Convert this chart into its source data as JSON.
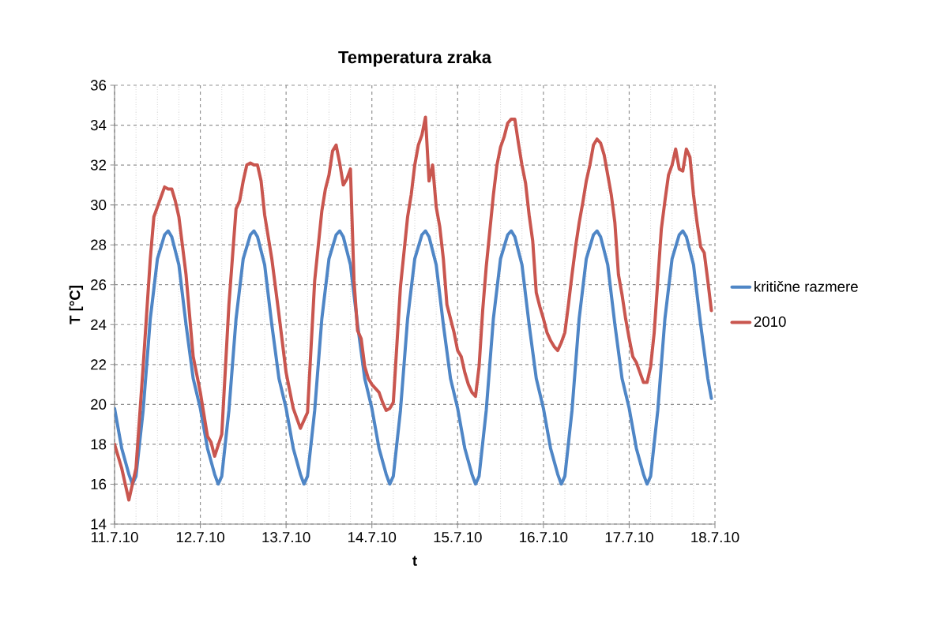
{
  "chart_data": {
    "type": "line",
    "title": "Temperatura zraka",
    "xlabel": "t",
    "ylabel": "T [°C]",
    "xlim": [
      "2010-07-11T00:00",
      "2010-07-18T00:00"
    ],
    "xticks": [
      {
        "value": "2010-07-11T00:00",
        "label": "11.7.10"
      },
      {
        "value": "2010-07-12T00:00",
        "label": "12.7.10"
      },
      {
        "value": "2010-07-13T00:00",
        "label": "13.7.10"
      },
      {
        "value": "2010-07-14T00:00",
        "label": "14.7.10"
      },
      {
        "value": "2010-07-15T00:00",
        "label": "15.7.10"
      },
      {
        "value": "2010-07-16T00:00",
        "label": "16.7.10"
      },
      {
        "value": "2010-07-17T00:00",
        "label": "17.7.10"
      },
      {
        "value": "2010-07-18T00:00",
        "label": "18.7.10"
      }
    ],
    "ylim": [
      14,
      36
    ],
    "yticks": [
      14,
      16,
      18,
      20,
      22,
      24,
      26,
      28,
      30,
      32,
      34,
      36
    ],
    "grid": true,
    "legend": "right",
    "series": [
      {
        "name": "kritične razmere",
        "color": "#4f86c6",
        "x": [
          "2010-07-11T00:00",
          "2010-07-11T02:00",
          "2010-07-11T04:00",
          "2010-07-11T05:00",
          "2010-07-11T06:00",
          "2010-07-11T08:00",
          "2010-07-11T10:00",
          "2010-07-11T12:00",
          "2010-07-11T14:00",
          "2010-07-11T15:00",
          "2010-07-11T16:00",
          "2010-07-11T18:00",
          "2010-07-11T20:00",
          "2010-07-11T22:00",
          "2010-07-12T00:00",
          "2010-07-12T02:00",
          "2010-07-12T04:00",
          "2010-07-12T05:00",
          "2010-07-12T06:00",
          "2010-07-12T08:00",
          "2010-07-12T10:00",
          "2010-07-12T12:00",
          "2010-07-12T14:00",
          "2010-07-12T15:00",
          "2010-07-12T16:00",
          "2010-07-12T18:00",
          "2010-07-12T20:00",
          "2010-07-12T22:00",
          "2010-07-13T00:00",
          "2010-07-13T02:00",
          "2010-07-13T04:00",
          "2010-07-13T05:00",
          "2010-07-13T06:00",
          "2010-07-13T08:00",
          "2010-07-13T10:00",
          "2010-07-13T12:00",
          "2010-07-13T14:00",
          "2010-07-13T15:00",
          "2010-07-13T16:00",
          "2010-07-13T18:00",
          "2010-07-13T20:00",
          "2010-07-13T22:00",
          "2010-07-14T00:00",
          "2010-07-14T02:00",
          "2010-07-14T04:00",
          "2010-07-14T05:00",
          "2010-07-14T06:00",
          "2010-07-14T08:00",
          "2010-07-14T10:00",
          "2010-07-14T12:00",
          "2010-07-14T14:00",
          "2010-07-14T15:00",
          "2010-07-14T16:00",
          "2010-07-14T18:00",
          "2010-07-14T20:00",
          "2010-07-14T22:00",
          "2010-07-15T00:00",
          "2010-07-15T02:00",
          "2010-07-15T04:00",
          "2010-07-15T05:00",
          "2010-07-15T06:00",
          "2010-07-15T08:00",
          "2010-07-15T10:00",
          "2010-07-15T12:00",
          "2010-07-15T14:00",
          "2010-07-15T15:00",
          "2010-07-15T16:00",
          "2010-07-15T18:00",
          "2010-07-15T20:00",
          "2010-07-15T22:00",
          "2010-07-16T00:00",
          "2010-07-16T02:00",
          "2010-07-16T04:00",
          "2010-07-16T05:00",
          "2010-07-16T06:00",
          "2010-07-16T08:00",
          "2010-07-16T10:00",
          "2010-07-16T12:00",
          "2010-07-16T14:00",
          "2010-07-16T15:00",
          "2010-07-16T16:00",
          "2010-07-16T18:00",
          "2010-07-16T20:00",
          "2010-07-16T22:00",
          "2010-07-17T00:00",
          "2010-07-17T02:00",
          "2010-07-17T04:00",
          "2010-07-17T05:00",
          "2010-07-17T06:00",
          "2010-07-17T08:00",
          "2010-07-17T10:00",
          "2010-07-17T12:00",
          "2010-07-17T14:00",
          "2010-07-17T15:00",
          "2010-07-17T16:00",
          "2010-07-17T18:00",
          "2010-07-17T20:00",
          "2010-07-17T22:00",
          "2010-07-17T23:00"
        ],
        "values": [
          19.8,
          17.8,
          16.5,
          16.0,
          16.4,
          19.7,
          24.3,
          27.3,
          28.5,
          28.7,
          28.4,
          27.0,
          24.0,
          21.3,
          19.8,
          17.8,
          16.5,
          16.0,
          16.4,
          19.7,
          24.3,
          27.3,
          28.5,
          28.7,
          28.4,
          27.0,
          24.0,
          21.3,
          19.8,
          17.8,
          16.5,
          16.0,
          16.4,
          19.7,
          24.3,
          27.3,
          28.5,
          28.7,
          28.4,
          27.0,
          24.0,
          21.3,
          19.8,
          17.8,
          16.5,
          16.0,
          16.4,
          19.7,
          24.3,
          27.3,
          28.5,
          28.7,
          28.4,
          27.0,
          24.0,
          21.3,
          19.8,
          17.8,
          16.5,
          16.0,
          16.4,
          19.7,
          24.3,
          27.3,
          28.5,
          28.7,
          28.4,
          27.0,
          24.0,
          21.3,
          19.8,
          17.8,
          16.5,
          16.0,
          16.4,
          19.7,
          24.3,
          27.3,
          28.5,
          28.7,
          28.4,
          27.0,
          24.0,
          21.3,
          19.8,
          17.8,
          16.5,
          16.0,
          16.4,
          19.7,
          24.3,
          27.3,
          28.5,
          28.7,
          28.4,
          27.0,
          24.0,
          21.3,
          20.3
        ]
      },
      {
        "name": "2010",
        "color": "#c9564f",
        "x": [
          "2010-07-11T00:00",
          "2010-07-11T02:00",
          "2010-07-11T03:00",
          "2010-07-11T04:00",
          "2010-07-11T06:00",
          "2010-07-11T08:00",
          "2010-07-11T10:00",
          "2010-07-11T11:00",
          "2010-07-11T12:00",
          "2010-07-11T13:00",
          "2010-07-11T14:00",
          "2010-07-11T15:00",
          "2010-07-11T16:00",
          "2010-07-11T17:00",
          "2010-07-11T18:00",
          "2010-07-11T20:00",
          "2010-07-11T22:00",
          "2010-07-12T00:00",
          "2010-07-12T02:00",
          "2010-07-12T03:00",
          "2010-07-12T04:00",
          "2010-07-12T06:00",
          "2010-07-12T08:00",
          "2010-07-12T10:00",
          "2010-07-12T11:00",
          "2010-07-12T12:00",
          "2010-07-12T13:00",
          "2010-07-12T14:00",
          "2010-07-12T15:00",
          "2010-07-12T16:00",
          "2010-07-12T17:00",
          "2010-07-12T18:00",
          "2010-07-12T20:00",
          "2010-07-12T22:00",
          "2010-07-13T00:00",
          "2010-07-13T02:00",
          "2010-07-13T04:00",
          "2010-07-13T06:00",
          "2010-07-13T08:00",
          "2010-07-13T10:00",
          "2010-07-13T11:00",
          "2010-07-13T12:00",
          "2010-07-13T13:00",
          "2010-07-13T14:00",
          "2010-07-13T15:00",
          "2010-07-13T16:00",
          "2010-07-13T17:00",
          "2010-07-13T18:00",
          "2010-07-13T19:00",
          "2010-07-13T20:00",
          "2010-07-13T21:00",
          "2010-07-13T22:00",
          "2010-07-13T23:00",
          "2010-07-14T00:00",
          "2010-07-14T01:00",
          "2010-07-14T02:00",
          "2010-07-14T03:00",
          "2010-07-14T04:00",
          "2010-07-14T05:00",
          "2010-07-14T06:00",
          "2010-07-14T07:00",
          "2010-07-14T08:00",
          "2010-07-14T10:00",
          "2010-07-14T11:00",
          "2010-07-14T12:00",
          "2010-07-14T13:00",
          "2010-07-14T14:00",
          "2010-07-14T15:00",
          "2010-07-14T16:00",
          "2010-07-14T17:00",
          "2010-07-14T18:00",
          "2010-07-14T19:00",
          "2010-07-14T20:00",
          "2010-07-14T21:00",
          "2010-07-14T22:00",
          "2010-07-14T23:00",
          "2010-07-15T00:00",
          "2010-07-15T01:00",
          "2010-07-15T02:00",
          "2010-07-15T03:00",
          "2010-07-15T04:00",
          "2010-07-15T05:00",
          "2010-07-15T06:00",
          "2010-07-15T07:00",
          "2010-07-15T08:00",
          "2010-07-15T10:00",
          "2010-07-15T11:00",
          "2010-07-15T12:00",
          "2010-07-15T13:00",
          "2010-07-15T14:00",
          "2010-07-15T15:00",
          "2010-07-15T16:00",
          "2010-07-15T17:00",
          "2010-07-15T18:00",
          "2010-07-15T19:00",
          "2010-07-15T20:00",
          "2010-07-15T21:00",
          "2010-07-15T22:00",
          "2010-07-15T23:00",
          "2010-07-16T00:00",
          "2010-07-16T01:00",
          "2010-07-16T02:00",
          "2010-07-16T03:00",
          "2010-07-16T04:00",
          "2010-07-16T05:00",
          "2010-07-16T06:00",
          "2010-07-16T07:00",
          "2010-07-16T08:00",
          "2010-07-16T09:00",
          "2010-07-16T10:00",
          "2010-07-16T11:00",
          "2010-07-16T12:00",
          "2010-07-16T13:00",
          "2010-07-16T14:00",
          "2010-07-16T15:00",
          "2010-07-16T16:00",
          "2010-07-16T17:00",
          "2010-07-16T18:00",
          "2010-07-16T19:00",
          "2010-07-16T20:00",
          "2010-07-16T21:00",
          "2010-07-16T22:00",
          "2010-07-16T23:00",
          "2010-07-17T00:00",
          "2010-07-17T01:00",
          "2010-07-17T02:00",
          "2010-07-17T03:00",
          "2010-07-17T04:00",
          "2010-07-17T05:00",
          "2010-07-17T06:00",
          "2010-07-17T07:00",
          "2010-07-17T08:00",
          "2010-07-17T09:00",
          "2010-07-17T10:00",
          "2010-07-17T11:00",
          "2010-07-17T12:00",
          "2010-07-17T13:00",
          "2010-07-17T14:00",
          "2010-07-17T15:00",
          "2010-07-17T16:00",
          "2010-07-17T17:00",
          "2010-07-17T18:00",
          "2010-07-17T19:00",
          "2010-07-17T20:00",
          "2010-07-17T21:00",
          "2010-07-17T22:00",
          "2010-07-17T23:00"
        ],
        "values": [
          18.0,
          16.8,
          16.0,
          15.2,
          16.8,
          21.9,
          27.3,
          29.4,
          29.9,
          30.4,
          30.9,
          30.8,
          30.8,
          30.2,
          29.4,
          26.5,
          22.4,
          20.6,
          18.4,
          18.1,
          17.4,
          18.5,
          25.0,
          29.8,
          30.2,
          31.2,
          32.0,
          32.1,
          32.0,
          32.0,
          31.2,
          29.5,
          27.3,
          24.5,
          21.6,
          19.8,
          18.8,
          19.6,
          26.2,
          29.7,
          30.8,
          31.5,
          32.7,
          33.0,
          32.1,
          31.0,
          31.3,
          31.8,
          26.2,
          23.7,
          23.3,
          21.9,
          21.3,
          21.0,
          20.8,
          20.6,
          20.1,
          19.7,
          19.8,
          20.1,
          23.0,
          25.9,
          29.4,
          30.5,
          32.0,
          33.0,
          33.5,
          34.4,
          31.2,
          32.0,
          29.9,
          28.9,
          27.3,
          25.0,
          24.3,
          23.6,
          22.7,
          22.4,
          21.6,
          21.0,
          20.6,
          20.4,
          21.9,
          24.7,
          26.9,
          30.5,
          32.0,
          32.9,
          33.4,
          34.1,
          34.3,
          34.3,
          33.1,
          32.0,
          31.1,
          29.5,
          28.2,
          25.6,
          24.9,
          24.3,
          23.6,
          23.2,
          22.9,
          22.7,
          23.1,
          23.6,
          25.0,
          26.5,
          27.9,
          29.1,
          30.1,
          31.2,
          32.0,
          33.0,
          33.3,
          33.1,
          32.5,
          31.5,
          30.5,
          29.1,
          26.5,
          25.5,
          24.3,
          23.3,
          22.4,
          22.1,
          21.6,
          21.1,
          21.1,
          21.9,
          23.6,
          26.2,
          28.8,
          30.2,
          31.5,
          32.0,
          32.8,
          31.8,
          31.7,
          32.8,
          32.4,
          30.5,
          29.1,
          27.9,
          27.6,
          26.2,
          24.7
        ]
      }
    ]
  }
}
